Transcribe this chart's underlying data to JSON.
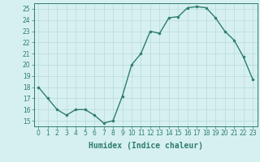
{
  "x": [
    0,
    1,
    2,
    3,
    4,
    5,
    6,
    7,
    8,
    9,
    10,
    11,
    12,
    13,
    14,
    15,
    16,
    17,
    18,
    19,
    20,
    21,
    22,
    23
  ],
  "y": [
    18,
    17,
    16,
    15.5,
    16,
    16,
    15.5,
    14.8,
    15,
    17.2,
    20,
    21,
    23,
    22.8,
    24.2,
    24.3,
    25.1,
    25.2,
    25.1,
    24.2,
    23,
    22.2,
    20.7,
    18.7
  ],
  "line_color": "#2e7d6e",
  "marker_color": "#2e7d6e",
  "bg_color": "#d6f0f0",
  "grid_color": "#b8dada",
  "xlabel": "Humidex (Indice chaleur)",
  "xlim": [
    -0.5,
    23.5
  ],
  "ylim": [
    14.5,
    25.5
  ],
  "yticks": [
    15,
    16,
    17,
    18,
    19,
    20,
    21,
    22,
    23,
    24,
    25
  ],
  "xticks": [
    0,
    1,
    2,
    3,
    4,
    5,
    6,
    7,
    8,
    9,
    10,
    11,
    12,
    13,
    14,
    15,
    16,
    17,
    18,
    19,
    20,
    21,
    22,
    23
  ],
  "tick_label_fontsize": 5.5,
  "xlabel_fontsize": 7.0,
  "marker_size": 2.0,
  "line_width": 1.0
}
